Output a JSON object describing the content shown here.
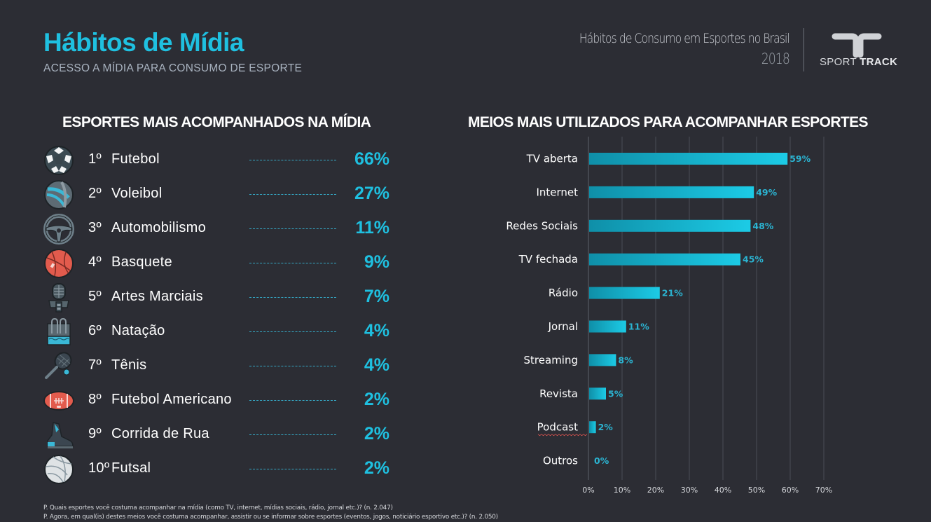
{
  "header": {
    "title": "Hábitos de Mídia",
    "subtitle": "ACESSO A MÍDIA PARA CONSUMO DE ESPORTE",
    "report_title": "Hábitos de Consumo em Esportes no Brasil",
    "report_year": "2018",
    "logo_text_light": "SPORT",
    "logo_text_bold": "TRACK"
  },
  "sports_section": {
    "title": "ESPORTES MAIS ACOMPANHADOS NA MÍDIA",
    "items": [
      {
        "rank": "1º",
        "name": "Futebol",
        "value": "66%",
        "icon": "soccer-ball-icon"
      },
      {
        "rank": "2º",
        "name": "Voleibol",
        "value": "27%",
        "icon": "volleyball-icon"
      },
      {
        "rank": "3º",
        "name": "Automobilismo",
        "value": "11%",
        "icon": "steering-wheel-icon"
      },
      {
        "rank": "4º",
        "name": "Basquete",
        "value": "9%",
        "icon": "basketball-icon"
      },
      {
        "rank": "5º",
        "name": "Artes Marciais",
        "value": "7%",
        "icon": "fencing-mask-icon"
      },
      {
        "rank": "6º",
        "name": "Natação",
        "value": "4%",
        "icon": "swimming-pool-icon"
      },
      {
        "rank": "7º",
        "name": "Tênis",
        "value": "4%",
        "icon": "tennis-racket-icon"
      },
      {
        "rank": "8º",
        "name": "Futebol Americano",
        "value": "2%",
        "icon": "american-football-icon"
      },
      {
        "rank": "9º",
        "name": "Corrida de Rua",
        "value": "2%",
        "icon": "running-shoe-icon"
      },
      {
        "rank": "10º",
        "name": "Futsal",
        "value": "2%",
        "icon": "futsal-ball-icon"
      }
    ]
  },
  "media_section": {
    "title": "MEIOS MAIS UTILIZADOS PARA ACOMPANHAR ESPORTES"
  },
  "chart_data": {
    "type": "bar",
    "orientation": "horizontal",
    "title": "MEIOS MAIS UTILIZADOS PARA ACOMPANHAR ESPORTES",
    "categories": [
      "TV aberta",
      "Internet",
      "Redes Sociais",
      "TV fechada",
      "Rádio",
      "Jornal",
      "Streaming",
      "Revista",
      "Podcast",
      "Outros"
    ],
    "values": [
      59,
      49,
      48,
      45,
      21,
      11,
      8,
      5,
      2,
      0
    ],
    "data_labels": [
      "59%",
      "49%",
      "48%",
      "45%",
      "21%",
      "11%",
      "8%",
      "5%",
      "2%",
      "0%"
    ],
    "xlabel": "",
    "ylabel": "",
    "xlim": [
      0,
      70
    ],
    "x_ticks": [
      0,
      10,
      20,
      30,
      40,
      50,
      60,
      70
    ],
    "x_tick_labels": [
      "0%",
      "10%",
      "20%",
      "30%",
      "40%",
      "50%",
      "60%",
      "70%"
    ],
    "grid": "vertical",
    "legend": "none",
    "bar_color_start": "#0f8fa8",
    "bar_color_end": "#1ccbe6",
    "label_color": "#2bb4d2"
  },
  "footnotes": [
    "P. Quais esportes você costuma acompanhar na mídia (como TV, internet, mídias sociais, rádio, jornal etc.)?  (n. 2.047)",
    "P. Agora, em qual(is) destes meios você costuma acompanhar, assistir ou se informar sobre esportes (eventos, jogos, noticiário esportivo etc.)? (n. 2.050)"
  ],
  "colors": {
    "background": "#2c2d34",
    "accent": "#1fc0e0",
    "subtitle": "#a9b3c0"
  }
}
